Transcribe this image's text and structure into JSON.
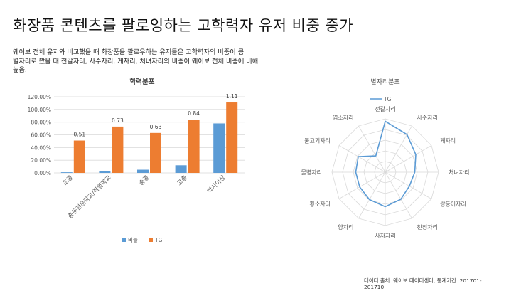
{
  "slide": {
    "title": "화장품 콘텐츠를 팔로잉하는 고학력자 유저 비중 증가",
    "description_lines": [
      "웨이보 전체 유저와 비교했을 때 화장품을 팔로우하는 유저들은 고학력자의 비중이 큼",
      "별자리로 봤을 때  전갈자리, 사수자리, 게자리, 처녀자리의 비중이 웨이보 전체 비중에 비해",
      "높음."
    ],
    "source_lines": [
      "데이터 출처: 웨이보 데이터센터, 통계기간: 201701-",
      "201710"
    ]
  },
  "chart_data": [
    {
      "type": "bar",
      "title": "학력분포",
      "categories": [
        "초졸",
        "중등전문학교/직업학교",
        "중졸",
        "고졸",
        "학사이상"
      ],
      "series": [
        {
          "name": "비율",
          "color": "#5b9bd5",
          "values": [
            0.01,
            0.03,
            0.05,
            0.12,
            0.78
          ]
        },
        {
          "name": "TGI",
          "color": "#ed7d31",
          "values": [
            0.51,
            0.73,
            0.63,
            0.84,
            1.11
          ]
        }
      ],
      "data_labels": [
        "0.51",
        "0.73",
        "0.63",
        "0.84",
        "1.11"
      ],
      "ylim": [
        0,
        1.2
      ],
      "yticks": [
        0,
        0.2,
        0.4,
        0.6,
        0.8,
        1.0,
        1.2
      ],
      "ytick_labels": [
        "0.00%",
        "20.00%",
        "40.00%",
        "60.00%",
        "80.00%",
        "100.00%",
        "120.00%"
      ],
      "grid": true,
      "legend": "bottom"
    },
    {
      "type": "radar",
      "title": "별자리분포",
      "categories": [
        "전갈자리",
        "사수자리",
        "게자리",
        "처녀자리",
        "쌍둥이자리",
        "천칭자리",
        "사자자리",
        "양자리",
        "황소자리",
        "물병자리",
        "물고기자리",
        "염소자리"
      ],
      "series": [
        {
          "name": "TGI",
          "color": "#5b9bd5",
          "values": [
            1.24,
            1.06,
            0.86,
            0.72,
            0.68,
            0.76,
            0.84,
            0.77,
            0.72,
            0.72,
            0.76,
            0.46
          ]
        }
      ],
      "rlim": [
        0,
        1.3
      ],
      "rings": [
        0.26,
        0.52,
        0.78,
        1.04,
        1.3
      ],
      "grid": true,
      "legend": "top"
    }
  ]
}
